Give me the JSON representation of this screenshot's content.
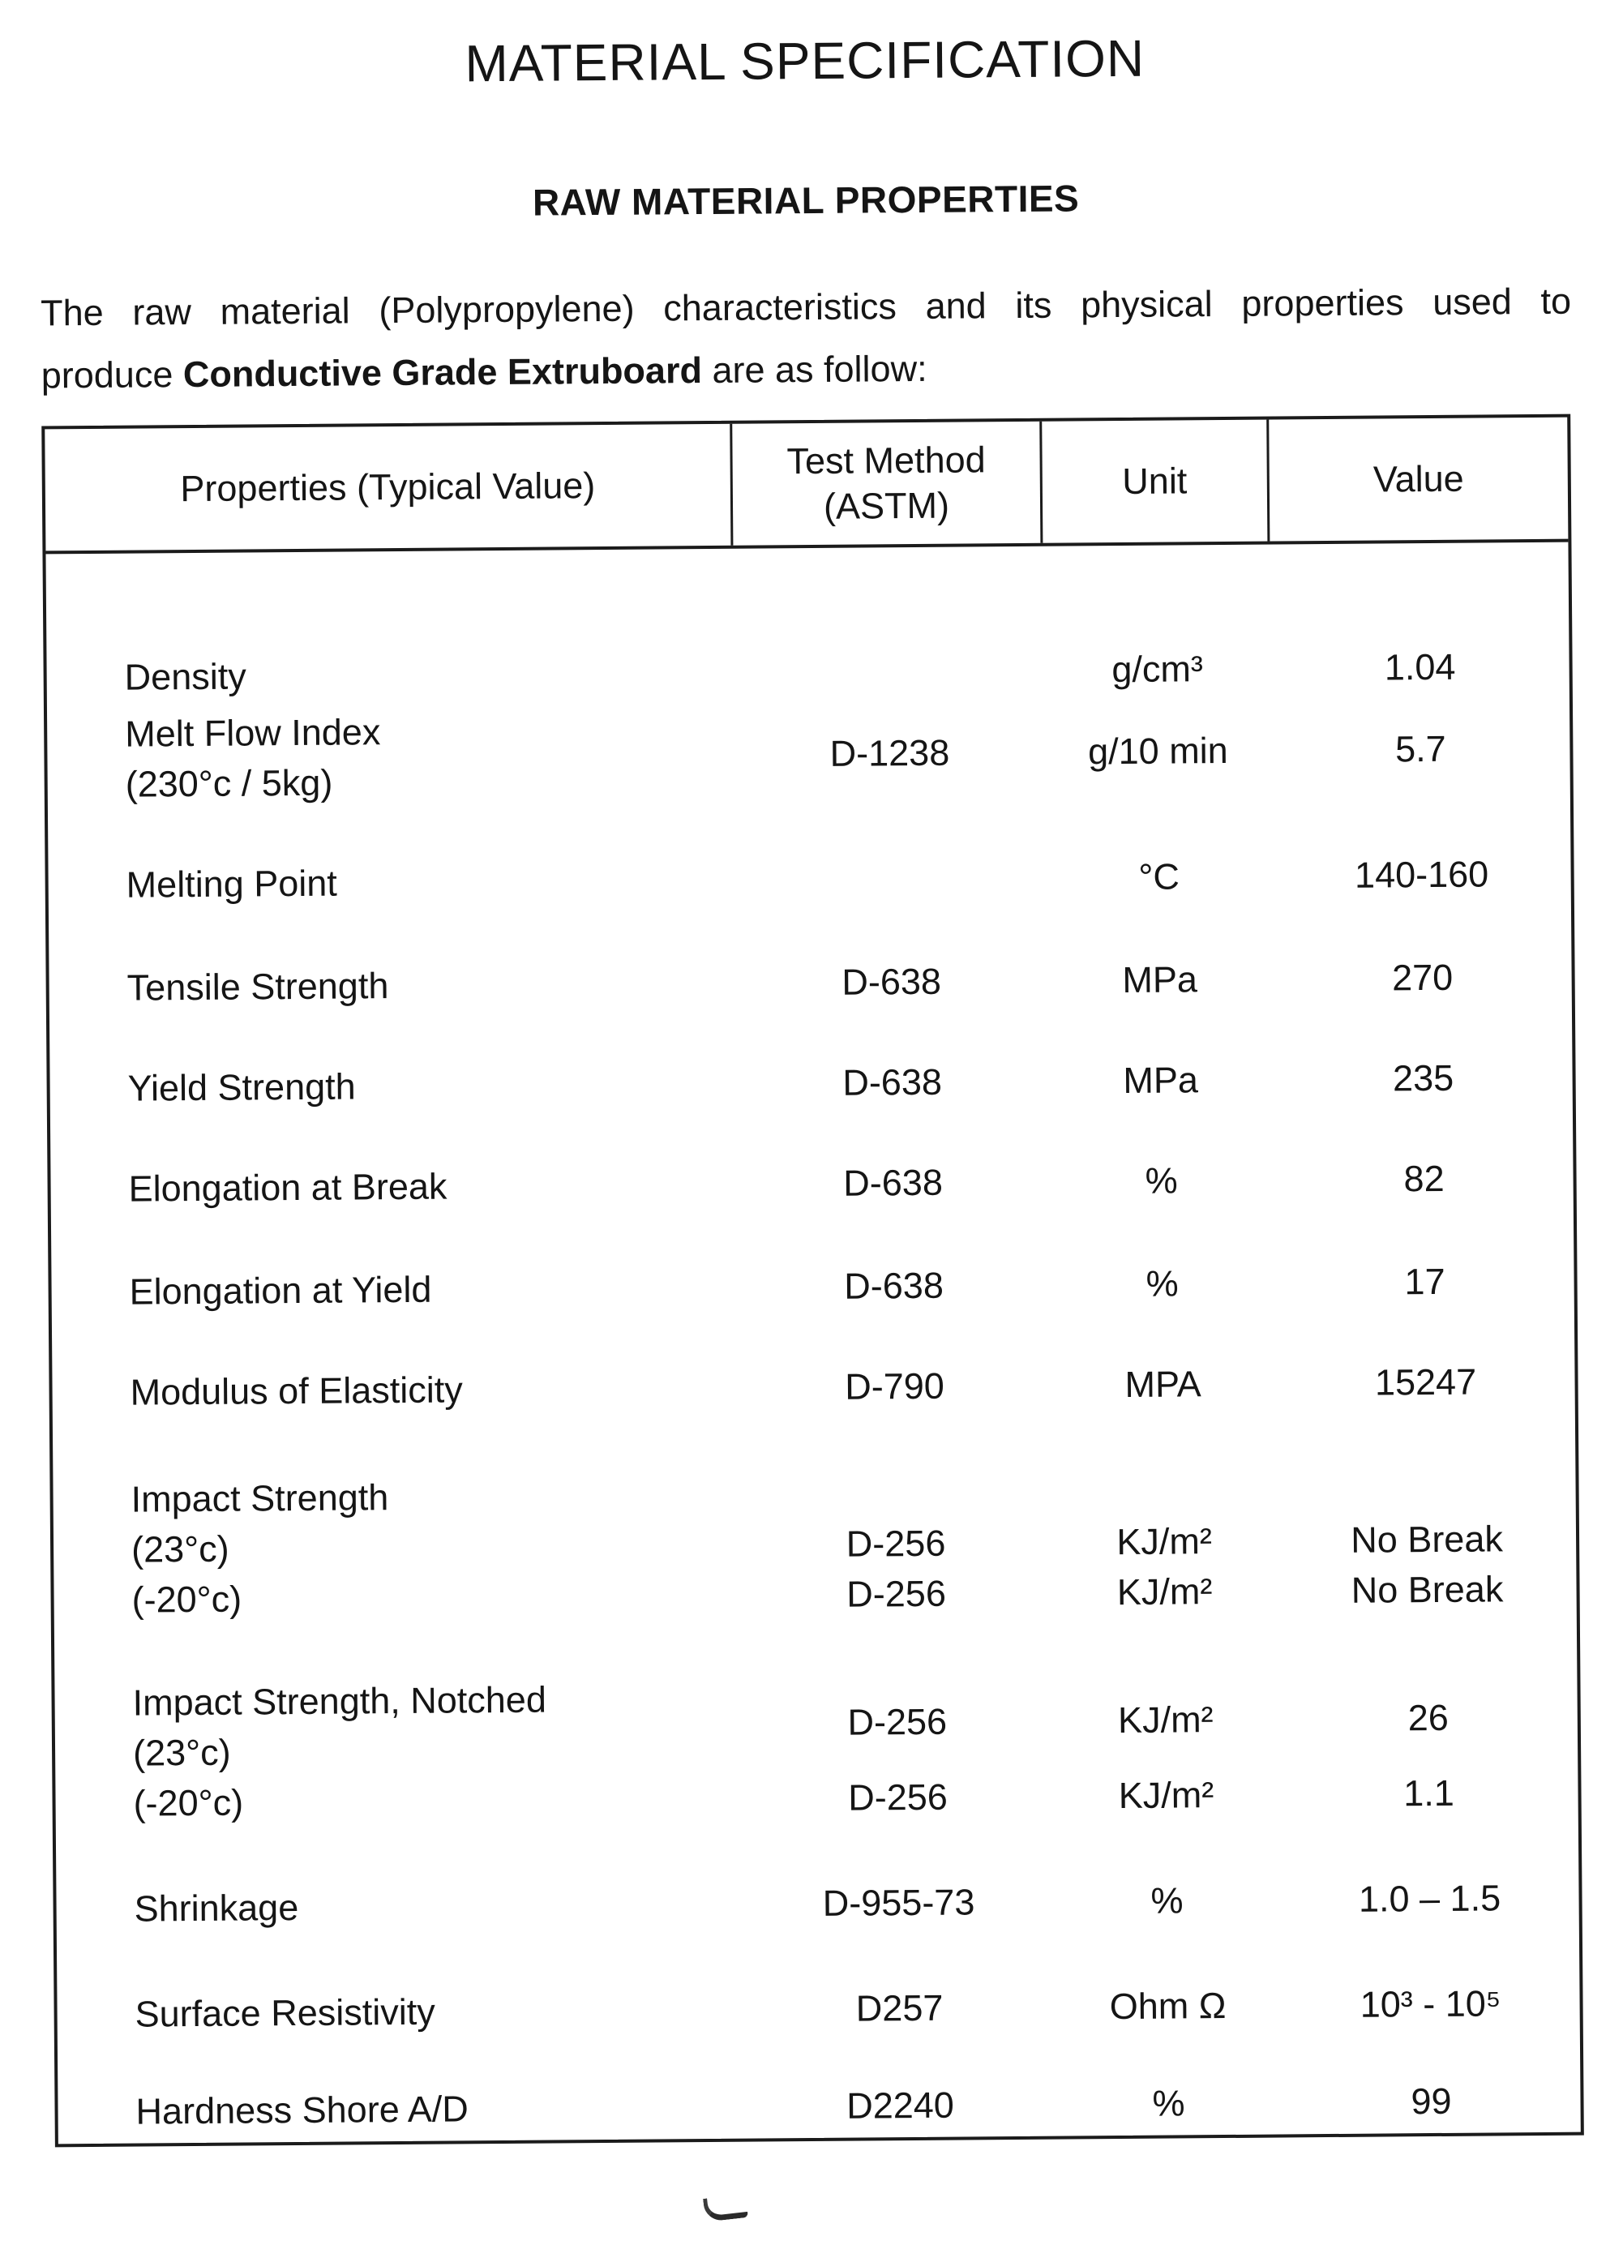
{
  "doc": {
    "title": "MATERIAL SPECIFICATION",
    "subtitle": "RAW MATERIAL PROPERTIES"
  },
  "intro": {
    "line1": "The raw material (Polypropylene) characteristics and its physical properties used to",
    "line2_pre": "produce ",
    "line2_bold": "Conductive Grade Extruboard",
    "line2_post": " are as follow:"
  },
  "table": {
    "headers": [
      "Properties (Typical Value)",
      "Test Method\n(ASTM)",
      "Unit",
      "Value"
    ],
    "rows": [
      {
        "p": "Density",
        "m": "",
        "u": "g/cm³",
        "v": "1.04"
      },
      {
        "p": "Melt Flow Index",
        "p2": "(230°c / 5kg)",
        "m": "D-1238",
        "u": "g/10 min",
        "v": "5.7"
      },
      {
        "p": "Melting Point",
        "m": "",
        "u": "°C",
        "v": "140-160"
      },
      {
        "p": "Tensile Strength",
        "m": "D-638",
        "u": "MPa",
        "v": "270"
      },
      {
        "p": "Yield Strength",
        "m": "D-638",
        "u": "MPa",
        "v": "235"
      },
      {
        "p": "Elongation at Break",
        "m": "D-638",
        "u": "%",
        "v": "82"
      },
      {
        "p": "Elongation at Yield",
        "m": "D-638",
        "u": "%",
        "v": "17"
      },
      {
        "p": "Modulus of Elasticity",
        "m": "D-790",
        "u": "MPA",
        "v": "15247"
      },
      {
        "p": "Impact Strength",
        "m": "",
        "u": "",
        "v": ""
      },
      {
        "p": "(23°c)",
        "m": "D-256",
        "u": "KJ/m²",
        "v": "No Break"
      },
      {
        "p": "(-20°c)",
        "m": "D-256",
        "u": "KJ/m²",
        "v": "No Break"
      },
      {
        "p": "Impact Strength, Notched",
        "p2": "(23°c)",
        "m": "D-256",
        "u": "KJ/m²",
        "v": "26"
      },
      {
        "p": "(-20°c)",
        "m": "D-256",
        "u": "KJ/m²",
        "v": "1.1"
      },
      {
        "p": "Shrinkage",
        "m": "D-955-73",
        "u": "%",
        "v": "1.0 – 1.5"
      },
      {
        "p": "Surface Resistivity",
        "m": "D257",
        "u": "Ohm Ω",
        "v": "10³ - 10⁵"
      },
      {
        "p": "Hardness Shore A/D",
        "m": "D2240",
        "u": "%",
        "v": "99"
      }
    ]
  },
  "colors": {
    "ink": "#1b1b1b",
    "paper": "#ffffff"
  }
}
